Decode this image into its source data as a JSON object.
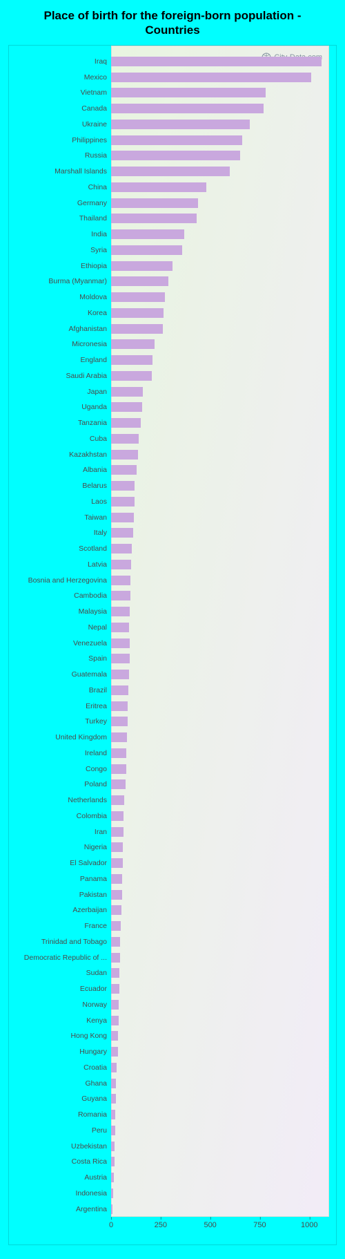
{
  "title": "Place of birth for the foreign-born population - Countries",
  "watermark": {
    "text": "City-Data.com",
    "color": "#7a8a9a"
  },
  "chart": {
    "type": "bar-horizontal",
    "background_color": "#00ffff",
    "plot_bg_gradient_from": "#e8f5e0",
    "plot_bg_gradient_to": "#f2ecf7",
    "bar_color": "#c9a8de",
    "label_color": "#4a4a4a",
    "label_fontsize": 10.5,
    "tick_fontsize": 11,
    "xlim": [
      0,
      1100
    ],
    "xticks": [
      0,
      250,
      500,
      750,
      1000
    ],
    "categories": [
      "Iraq",
      "Mexico",
      "Vietnam",
      "Canada",
      "Ukraine",
      "Philippines",
      "Russia",
      "Marshall Islands",
      "China",
      "Germany",
      "Thailand",
      "India",
      "Syria",
      "Ethiopia",
      "Burma (Myanmar)",
      "Moldova",
      "Korea",
      "Afghanistan",
      "Micronesia",
      "England",
      "Saudi Arabia",
      "Japan",
      "Uganda",
      "Tanzania",
      "Cuba",
      "Kazakhstan",
      "Albania",
      "Belarus",
      "Laos",
      "Taiwan",
      "Italy",
      "Scotland",
      "Latvia",
      "Bosnia and Herzegovina",
      "Cambodia",
      "Malaysia",
      "Nepal",
      "Venezuela",
      "Spain",
      "Guatemala",
      "Brazil",
      "Eritrea",
      "Turkey",
      "United Kingdom",
      "Ireland",
      "Congo",
      "Poland",
      "Netherlands",
      "Colombia",
      "Iran",
      "Nigeria",
      "El Salvador",
      "Panama",
      "Pakistan",
      "Azerbaijan",
      "France",
      "Trinidad and Tobago",
      "Democratic Republic of ...",
      "Sudan",
      "Ecuador",
      "Norway",
      "Kenya",
      "Hong Kong",
      "Hungary",
      "Croatia",
      "Ghana",
      "Guyana",
      "Romania",
      "Peru",
      "Uzbekistan",
      "Costa Rica",
      "Austria",
      "Indonesia",
      "Argentina"
    ],
    "values": [
      1060,
      1010,
      780,
      770,
      700,
      660,
      650,
      600,
      480,
      440,
      430,
      370,
      360,
      310,
      290,
      270,
      265,
      260,
      220,
      210,
      205,
      160,
      155,
      150,
      140,
      135,
      130,
      120,
      118,
      115,
      112,
      105,
      100,
      98,
      96,
      94,
      92,
      95,
      93,
      90,
      88,
      85,
      82,
      80,
      78,
      76,
      74,
      65,
      64,
      62,
      60,
      58,
      56,
      54,
      52,
      50,
      45,
      44,
      42,
      41,
      40,
      38,
      36,
      34,
      28,
      26,
      24,
      22,
      20,
      18,
      16,
      14,
      12,
      8
    ]
  }
}
